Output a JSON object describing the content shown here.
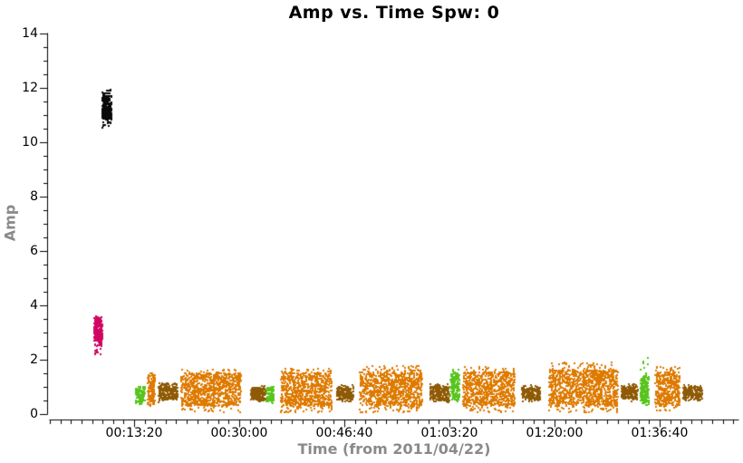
{
  "chart_data": {
    "type": "scatter",
    "title": "Amp vs. Time Spw: 0",
    "xlabel": "Time (from 2011/04/22)",
    "ylabel": "Amp",
    "legend": "none",
    "grid": false,
    "x_axis": {
      "unit": "time since 2011/04/22 00:00:00",
      "range_seconds": [
        0,
        6550
      ],
      "major_tick_seconds": [
        800,
        1800,
        2800,
        3800,
        4800,
        5800
      ],
      "major_tick_labels": [
        "00:13:20",
        "00:30:00",
        "00:46:40",
        "01:03:20",
        "01:20:00",
        "01:36:40"
      ],
      "minor_tick_step_seconds": 100
    },
    "y_axis": {
      "range": [
        0,
        14
      ],
      "major_tick_values": [
        0,
        2,
        4,
        6,
        8,
        10,
        12,
        14
      ],
      "major_tick_labels": [
        "0",
        "2",
        "4",
        "6",
        "8",
        "10",
        "12",
        "14"
      ],
      "minor_tick_step": 0.5
    },
    "colors": {
      "black": "#0a0a0a",
      "magenta": "#d00762",
      "orange": "#de7a00",
      "brown": "#8f5a05",
      "green": "#58c41c",
      "axis": "#000000",
      "axis_title": "#8a8a8a",
      "background": "#ffffff"
    },
    "clusters": [
      {
        "name": "cluster-01-black-high",
        "color": "black",
        "t": [
          498,
          584
        ],
        "amp": [
          10.5,
          11.95
        ],
        "amp_core": [
          10.85,
          11.72
        ],
        "n": 340
      },
      {
        "name": "cluster-02-magenta",
        "color": "magenta",
        "t": [
          420,
          498
        ],
        "amp": [
          2.2,
          3.62
        ],
        "amp_core": [
          2.68,
          3.55
        ],
        "n": 300
      },
      {
        "name": "cluster-03-green",
        "color": "green",
        "t": [
          817,
          903
        ],
        "amp": [
          0.33,
          1.05
        ],
        "amp_core": [
          0.42,
          0.97
        ],
        "n": 110
      },
      {
        "name": "cluster-04-orange",
        "color": "orange",
        "t": [
          929,
          998
        ],
        "amp": [
          0.07,
          1.63
        ],
        "amp_core": [
          0.3,
          1.45
        ],
        "n": 130
      },
      {
        "name": "cluster-05-brown",
        "color": "brown",
        "t": [
          1033,
          1214
        ],
        "amp": [
          0.43,
          1.15
        ],
        "amp_core": [
          0.52,
          1.02
        ],
        "n": 230
      },
      {
        "name": "cluster-06-orange",
        "color": "orange",
        "t": [
          1248,
          1817
        ],
        "amp": [
          0.05,
          1.65
        ],
        "amp_core": [
          0.3,
          1.5
        ],
        "n": 950
      },
      {
        "name": "cluster-07-brown",
        "color": "brown",
        "t": [
          1912,
          2050
        ],
        "amp": [
          0.45,
          1.05
        ],
        "amp_core": [
          0.52,
          0.98
        ],
        "n": 180
      },
      {
        "name": "cluster-08-green",
        "color": "green",
        "t": [
          2059,
          2128
        ],
        "amp": [
          0.38,
          1.08
        ],
        "amp_core": [
          0.45,
          0.97
        ],
        "n": 100
      },
      {
        "name": "cluster-09-orange",
        "color": "orange",
        "t": [
          2197,
          2679
        ],
        "amp": [
          0.05,
          1.7
        ],
        "amp_core": [
          0.3,
          1.52
        ],
        "n": 800
      },
      {
        "name": "cluster-10-brown",
        "color": "brown",
        "t": [
          2731,
          2886
        ],
        "amp": [
          0.45,
          1.07
        ],
        "amp_core": [
          0.52,
          1.0
        ],
        "n": 195
      },
      {
        "name": "cluster-11-orange",
        "color": "orange",
        "t": [
          2946,
          3541
        ],
        "amp": [
          0.05,
          1.78
        ],
        "amp_core": [
          0.3,
          1.55
        ],
        "n": 980
      },
      {
        "name": "cluster-12-brown",
        "color": "brown",
        "t": [
          3619,
          3800
        ],
        "amp": [
          0.42,
          1.12
        ],
        "amp_core": [
          0.5,
          1.03
        ],
        "n": 225
      },
      {
        "name": "cluster-13-green",
        "color": "green",
        "t": [
          3808,
          3895
        ],
        "amp": [
          0.45,
          1.65
        ],
        "amp_core": [
          0.52,
          1.55
        ],
        "n": 165
      },
      {
        "name": "cluster-14-orange",
        "color": "orange",
        "t": [
          3929,
          4421
        ],
        "amp": [
          0.05,
          1.75
        ],
        "amp_core": [
          0.3,
          1.55
        ],
        "n": 820
      },
      {
        "name": "cluster-15-brown",
        "color": "brown",
        "t": [
          4490,
          4662
        ],
        "amp": [
          0.45,
          1.06
        ],
        "amp_core": [
          0.52,
          1.0
        ],
        "n": 210
      },
      {
        "name": "cluster-16-orange",
        "color": "orange",
        "t": [
          4749,
          5404
        ],
        "amp": [
          0.05,
          1.92
        ],
        "amp_core": [
          0.3,
          1.62
        ],
        "n": 1080
      },
      {
        "name": "cluster-17-brown",
        "color": "brown",
        "t": [
          5438,
          5593
        ],
        "amp": [
          0.47,
          1.12
        ],
        "amp_core": [
          0.55,
          1.03
        ],
        "n": 195
      },
      {
        "name": "cluster-18-green",
        "color": "green",
        "t": [
          5618,
          5697
        ],
        "amp": [
          0.3,
          2.07
        ],
        "amp_core": [
          0.37,
          1.37
        ],
        "n": 185
      },
      {
        "name": "cluster-19-orange",
        "color": "orange",
        "t": [
          5757,
          5990
        ],
        "amp": [
          0.1,
          1.75
        ],
        "amp_core": [
          0.3,
          1.55
        ],
        "n": 420
      },
      {
        "name": "cluster-20-brown",
        "color": "brown",
        "t": [
          6024,
          6205
        ],
        "amp": [
          0.47,
          1.06
        ],
        "amp_core": [
          0.55,
          1.0
        ],
        "n": 215
      }
    ]
  }
}
